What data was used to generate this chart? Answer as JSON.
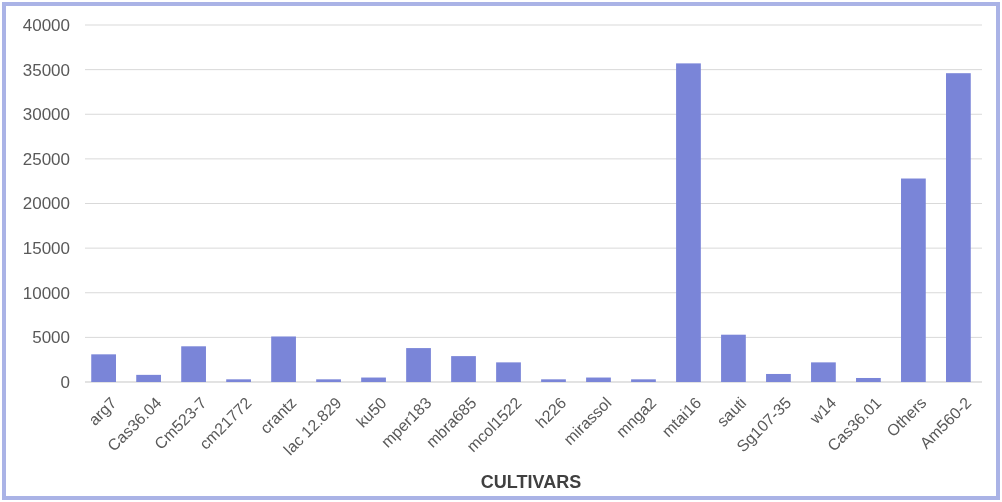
{
  "chart_data": {
    "type": "bar",
    "xlabel": "CULTIVARS",
    "categories": [
      "arg7",
      "Cas36.04",
      "Cm523-7",
      "cm21772",
      "crantz",
      "lac 12.829",
      "ku50",
      "mper183",
      "mbra685",
      "mcol1522",
      "h226",
      "mirassol",
      "mnga2",
      "mtai16",
      "sauti",
      "Sg107-35",
      "w14",
      "Cas36.01",
      "Others",
      "Am560-2"
    ],
    "values": [
      3100,
      800,
      4000,
      300,
      5100,
      300,
      500,
      3800,
      2900,
      2200,
      300,
      500,
      300,
      35700,
      5300,
      900,
      2200,
      450,
      22800,
      34600
    ],
    "color": "#7a85d8",
    "ylim": [
      0,
      40000
    ],
    "yticks": [
      0,
      5000,
      10000,
      15000,
      20000,
      25000,
      30000,
      35000,
      40000
    ],
    "grid": "y"
  }
}
